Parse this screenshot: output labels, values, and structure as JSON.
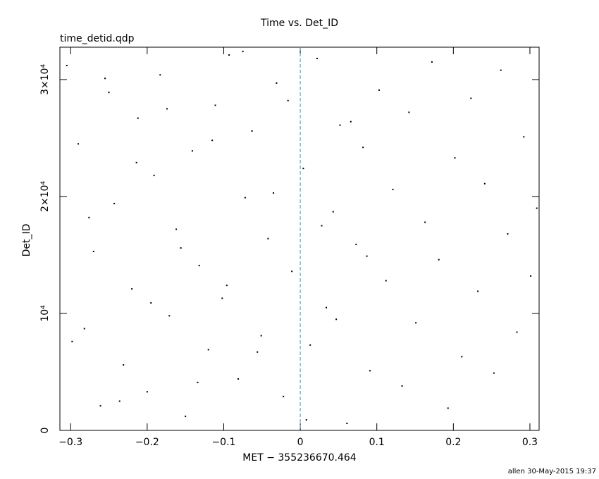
{
  "chart_data": {
    "type": "scatter",
    "title": "Time vs. Det_ID",
    "subtitle": "time_detid.qdp",
    "x_label": "MET − 355236670.464",
    "y_label": "Det_ID",
    "footer": "allen 30-May-2015 19:37",
    "color": "#000000",
    "vline": {
      "value": 0,
      "color": "#3a9fa8"
    },
    "xlim": [
      -0.314,
      0.312
    ],
    "ylim": [
      0,
      32768
    ],
    "xticks": [
      {
        "value": -0.3,
        "label": "−0.3"
      },
      {
        "value": -0.2,
        "label": "−0.2"
      },
      {
        "value": -0.1,
        "label": "−0.1"
      },
      0,
      0.1,
      0.2,
      0.3
    ],
    "yticks": [
      0,
      {
        "value": 10000,
        "label": "10⁴"
      },
      {
        "value": 20000,
        "label": "2×10⁴"
      },
      {
        "value": 30000,
        "label": "3×10⁴"
      }
    ],
    "x": [
      -0.305,
      -0.29,
      -0.282,
      -0.27,
      -0.261,
      -0.25,
      -0.243,
      -0.231,
      -0.22,
      -0.212,
      -0.2,
      -0.191,
      -0.183,
      -0.171,
      -0.162,
      -0.15,
      -0.141,
      -0.132,
      -0.12,
      -0.111,
      -0.102,
      -0.093,
      -0.081,
      -0.072,
      -0.063,
      -0.051,
      -0.042,
      -0.031,
      -0.022,
      -0.011,
      0.004,
      0.013,
      0.022,
      0.034,
      0.043,
      0.052,
      0.061,
      0.073,
      0.082,
      0.091,
      0.103,
      0.112,
      0.121,
      0.133,
      0.142,
      0.151,
      0.163,
      0.172,
      0.181,
      0.193,
      0.202,
      0.211,
      0.223,
      0.232,
      0.241,
      0.253,
      0.262,
      0.271,
      0.283,
      0.292,
      0.301,
      0.309,
      -0.298,
      -0.276,
      -0.255,
      -0.236,
      -0.214,
      -0.195,
      -0.174,
      -0.156,
      -0.134,
      -0.115,
      -0.096,
      -0.075,
      -0.056,
      -0.035,
      -0.016,
      0.008,
      0.028,
      0.047,
      0.066,
      0.087
    ],
    "values": [
      31200,
      24500,
      8700,
      15300,
      2100,
      28900,
      19400,
      5600,
      12100,
      26700,
      3300,
      21800,
      30400,
      9800,
      17200,
      1200,
      23900,
      14100,
      6900,
      27800,
      11300,
      32100,
      4400,
      19900,
      25600,
      8100,
      16400,
      29700,
      2900,
      13600,
      22400,
      7300,
      31800,
      10500,
      18700,
      26100,
      600,
      15900,
      24200,
      5100,
      29100,
      12800,
      20600,
      3800,
      27200,
      9200,
      17800,
      31500,
      14600,
      1900,
      23300,
      6300,
      28400,
      11900,
      21100,
      4900,
      30800,
      16800,
      8400,
      25100,
      13200,
      19000,
      7600,
      18200,
      30100,
      2500,
      22900,
      10900,
      27500,
      15600,
      4100,
      24800,
      12400,
      32400,
      6700,
      20300,
      28200,
      900,
      17500,
      9500,
      26400,
      14900
    ]
  }
}
